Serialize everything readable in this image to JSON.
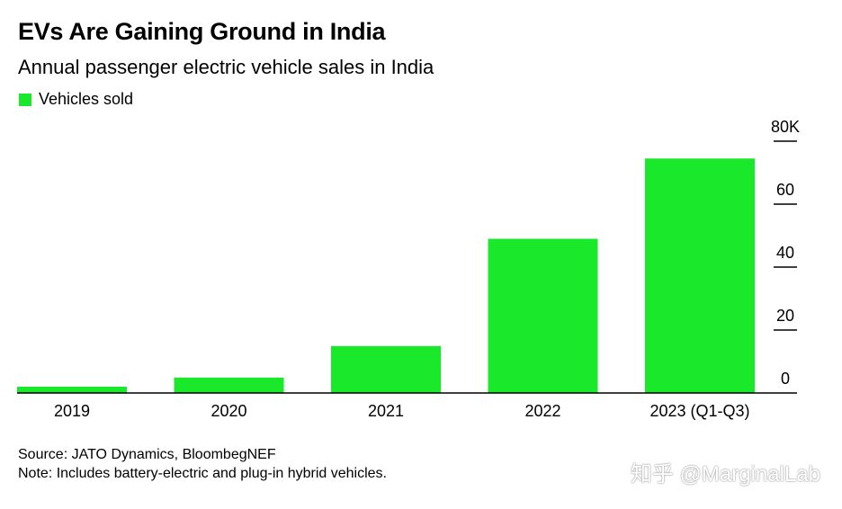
{
  "chart_data": {
    "type": "bar",
    "title": "EVs Are Gaining Ground in India",
    "subtitle": "Annual passenger electric vehicle sales in India",
    "legend": {
      "label": "Vehicles sold",
      "position": "top-left"
    },
    "categories": [
      "2019",
      "2020",
      "2021",
      "2022",
      "2023 (Q1-Q3)"
    ],
    "series": [
      {
        "name": "Vehicles sold",
        "values": [
          2000,
          4900,
          14900,
          49000,
          74500
        ]
      }
    ],
    "yaxis": {
      "position": "right",
      "ticks": [
        0,
        20,
        40,
        60,
        80
      ],
      "tick_labels": [
        "0",
        "20",
        "40",
        "60",
        "80K"
      ],
      "ylim": [
        0,
        80000
      ]
    },
    "xlabel": "",
    "ylabel": "",
    "grid": false,
    "colors": {
      "bar": "#1ae92b",
      "axis": "#000000",
      "text": "#000000"
    }
  },
  "footer": {
    "source": "Source: JATO Dynamics, BloombegNEF",
    "note": "Note: Includes battery-electric and plug-in hybrid vehicles."
  },
  "watermark": "知乎 @MarginalLab"
}
